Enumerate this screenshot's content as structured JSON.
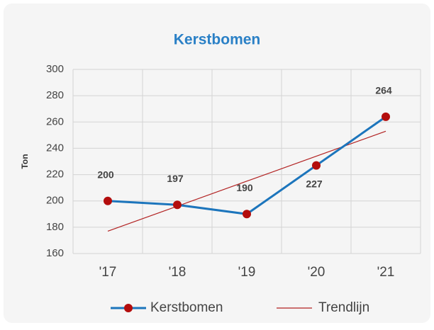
{
  "chart_data": {
    "type": "line",
    "title": "Kerstbomen",
    "y_label": "Ton",
    "categories": [
      "'17",
      "'18",
      "'19",
      "'20",
      "'21"
    ],
    "series": [
      {
        "name": "Kerstbomen",
        "color": "#1c75bc",
        "marker_color": "#b30d0d",
        "values": [
          200,
          197,
          190,
          227,
          264
        ]
      },
      {
        "name": "Trendlijn",
        "color": "#b22222",
        "values": [
          177,
          196,
          215,
          234,
          253
        ]
      }
    ],
    "ylim": [
      160,
      300
    ],
    "yticks": [
      160,
      180,
      200,
      220,
      240,
      260,
      280,
      300
    ],
    "grid": true,
    "legend": "bottom"
  }
}
